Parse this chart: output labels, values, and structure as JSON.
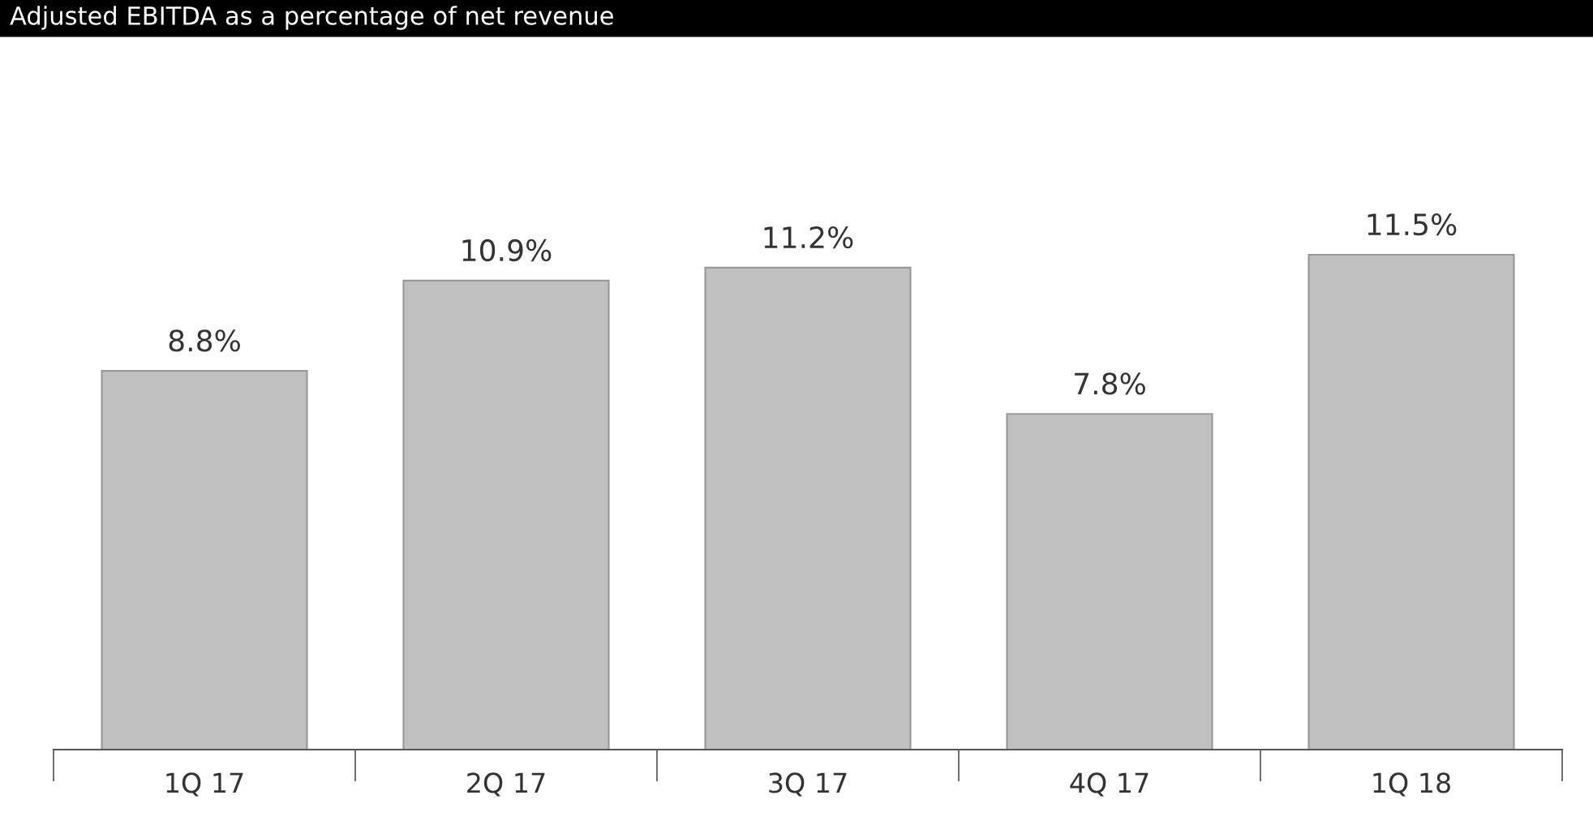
{
  "chart_data": {
    "type": "bar",
    "title": "Adjusted EBITDA as a percentage of net revenue",
    "categories": [
      "1Q 17",
      "2Q 17",
      "3Q 17",
      "4Q 17",
      "1Q 18"
    ],
    "values": [
      8.8,
      10.9,
      11.2,
      7.8,
      11.5
    ],
    "value_labels": [
      "8.8%",
      "10.9%",
      "11.2%",
      "7.8%",
      "11.5%"
    ],
    "color": "#c0c0c0",
    "grid": false,
    "legend": false
  }
}
